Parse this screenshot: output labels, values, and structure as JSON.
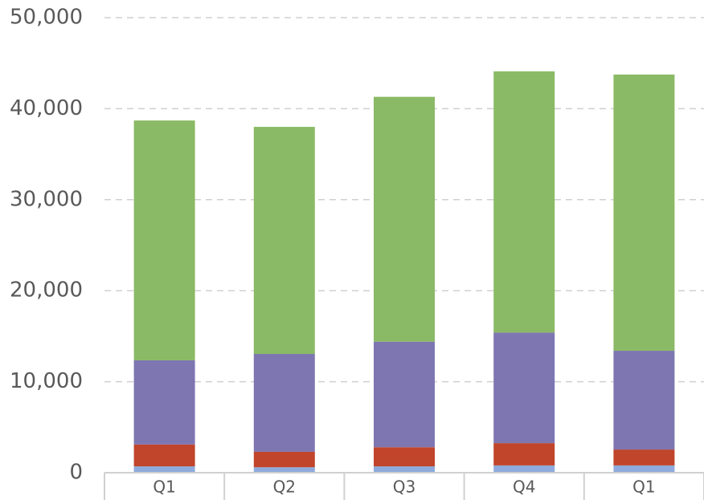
{
  "chart_data": {
    "type": "stacked_bar",
    "categories": [
      "Q1",
      "Q2",
      "Q3",
      "Q4",
      "Q1"
    ],
    "series": [
      {
        "color": "#8faadc",
        "values": [
          700,
          600,
          700,
          800,
          800
        ]
      },
      {
        "color": "#c0452a",
        "values": [
          2400,
          1700,
          2100,
          2450,
          1750
        ]
      },
      {
        "color": "#7e76b1",
        "values": [
          9250,
          10750,
          11600,
          12150,
          10850
        ]
      },
      {
        "color": "#8aba65",
        "values": [
          26350,
          24950,
          26900,
          28700,
          30350
        ]
      }
    ],
    "ylim": [
      0,
      50000
    ],
    "yticks": [
      0,
      {
        "value": 10000,
        "label": "10,000"
      },
      {
        "value": 20000,
        "label": "20,000"
      },
      {
        "value": 30000,
        "label": "30,000"
      },
      {
        "value": 40000,
        "label": "40,000"
      },
      {
        "value": 50000,
        "label": "50,000"
      }
    ],
    "grid": true
  }
}
